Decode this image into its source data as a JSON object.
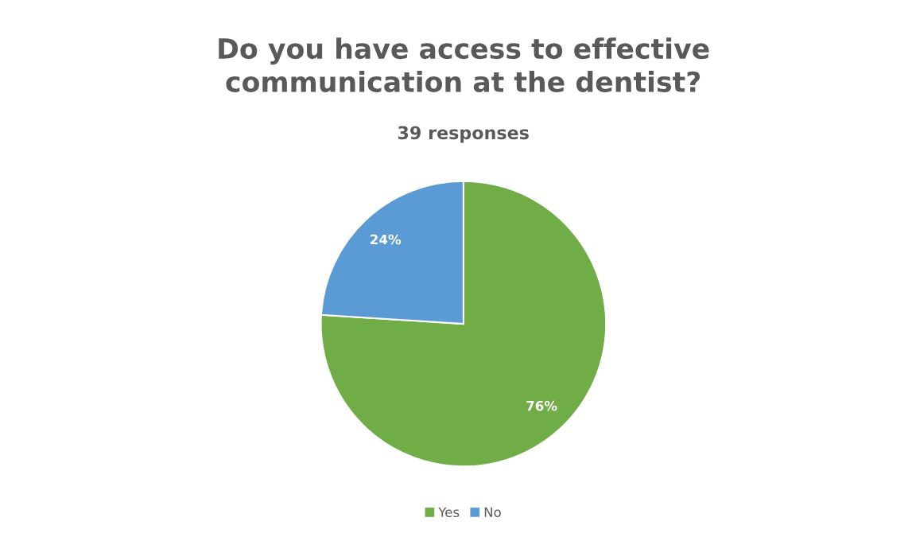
{
  "chart_data": {
    "type": "pie",
    "title": "Do you have access to effective\ncommunication at the dentist?",
    "subtitle": "39 responses",
    "categories": [
      "Yes",
      "No"
    ],
    "values": [
      76,
      24
    ],
    "colors": [
      "#70ad47",
      "#5b9bd5"
    ],
    "value_labels": [
      "76%",
      "24%"
    ],
    "legend": "bottom"
  }
}
